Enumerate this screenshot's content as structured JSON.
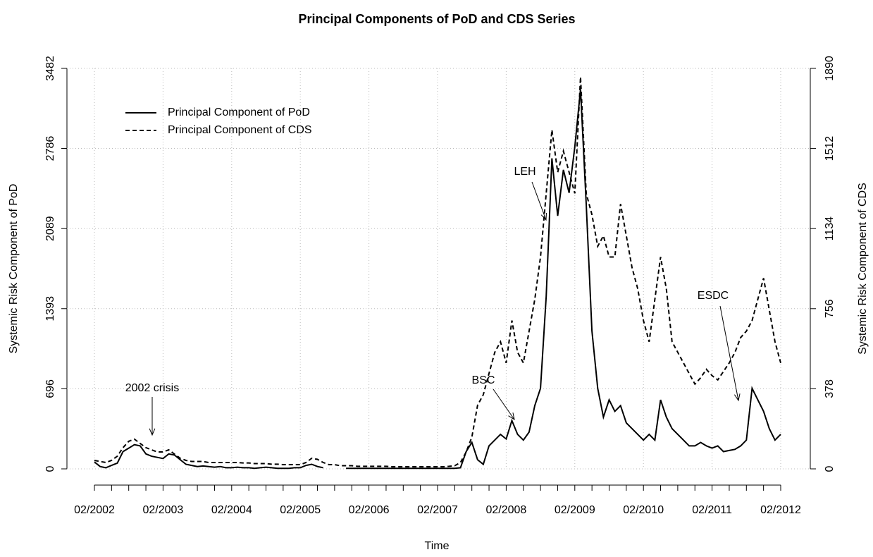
{
  "chart_data": {
    "type": "line",
    "title": "Principal Components of PoD and CDS Series",
    "x_label": "Time",
    "y_label": "Systemic Risk Component of PoD",
    "y2_label": "Systemic Risk Component of CDS",
    "x": [
      "02/2002",
      "03/2002",
      "04/2002",
      "05/2002",
      "06/2002",
      "07/2002",
      "08/2002",
      "09/2002",
      "10/2002",
      "11/2002",
      "12/2002",
      "01/2003",
      "02/2003",
      "03/2003",
      "04/2003",
      "05/2003",
      "06/2003",
      "07/2003",
      "08/2003",
      "09/2003",
      "10/2003",
      "11/2003",
      "12/2003",
      "01/2004",
      "02/2004",
      "03/2004",
      "04/2004",
      "05/2004",
      "06/2004",
      "07/2004",
      "08/2004",
      "09/2004",
      "10/2004",
      "11/2004",
      "12/2004",
      "01/2005",
      "02/2005",
      "03/2005",
      "04/2005",
      "05/2005",
      "06/2005",
      "07/2005",
      "08/2005",
      "09/2005",
      "10/2005",
      "11/2005",
      "12/2005",
      "01/2006",
      "02/2006",
      "03/2006",
      "04/2006",
      "05/2006",
      "06/2006",
      "07/2006",
      "08/2006",
      "09/2006",
      "10/2006",
      "11/2006",
      "12/2006",
      "01/2007",
      "02/2007",
      "03/2007",
      "04/2007",
      "05/2007",
      "06/2007",
      "07/2007",
      "08/2007",
      "09/2007",
      "10/2007",
      "11/2007",
      "12/2007",
      "01/2008",
      "02/2008",
      "03/2008",
      "04/2008",
      "05/2008",
      "06/2008",
      "07/2008",
      "08/2008",
      "09/2008",
      "10/2008",
      "11/2008",
      "12/2008",
      "01/2009",
      "02/2009",
      "03/2009",
      "04/2009",
      "05/2009",
      "06/2009",
      "07/2009",
      "08/2009",
      "09/2009",
      "10/2009",
      "11/2009",
      "12/2009",
      "01/2010",
      "02/2010",
      "03/2010",
      "04/2010",
      "05/2010",
      "06/2010",
      "07/2010",
      "08/2010",
      "09/2010",
      "10/2010",
      "11/2010",
      "12/2010",
      "01/2011",
      "02/2011",
      "03/2011",
      "04/2011",
      "05/2011",
      "06/2011",
      "07/2011",
      "08/2011",
      "09/2011",
      "10/2011",
      "11/2011",
      "12/2011",
      "01/2012",
      "02/2012"
    ],
    "series": [
      {
        "name": "Principal Component of PoD",
        "color": "#000000",
        "line_style": "solid",
        "values": [
          60,
          20,
          10,
          30,
          50,
          150,
          180,
          210,
          200,
          130,
          110,
          100,
          90,
          130,
          120,
          80,
          40,
          30,
          20,
          25,
          20,
          15,
          20,
          10,
          10,
          15,
          10,
          10,
          5,
          10,
          15,
          10,
          5,
          5,
          5,
          10,
          10,
          30,
          40,
          20,
          10,
          null,
          null,
          null,
          5,
          5,
          5,
          5,
          5,
          5,
          5,
          5,
          5,
          5,
          5,
          5,
          5,
          5,
          5,
          5,
          5,
          5,
          5,
          5,
          10,
          150,
          230,
          80,
          40,
          200,
          250,
          300,
          260,
          420,
          300,
          250,
          320,
          550,
          700,
          1500,
          2700,
          2200,
          2600,
          2400,
          2800,
          3300,
          2300,
          1200,
          700,
          450,
          600,
          500,
          550,
          400,
          350,
          300,
          250,
          300,
          250,
          600,
          450,
          350,
          300,
          250,
          200,
          200,
          230,
          200,
          180,
          200,
          150,
          160,
          170,
          200,
          250,
          700,
          600,
          500,
          350,
          250,
          300
        ]
      },
      {
        "name": "Principal Component of CDS",
        "color": "#000000",
        "line_style": "dashed",
        "axis": "y2",
        "values": [
          40,
          35,
          30,
          40,
          60,
          100,
          130,
          140,
          120,
          100,
          90,
          80,
          80,
          90,
          70,
          50,
          40,
          35,
          35,
          35,
          30,
          30,
          30,
          30,
          30,
          30,
          28,
          28,
          25,
          25,
          25,
          22,
          22,
          20,
          20,
          20,
          20,
          30,
          50,
          45,
          30,
          20,
          20,
          15,
          15,
          15,
          12,
          12,
          12,
          12,
          12,
          12,
          10,
          10,
          10,
          10,
          10,
          10,
          10,
          10,
          10,
          10,
          12,
          15,
          30,
          80,
          150,
          300,
          350,
          450,
          550,
          600,
          500,
          700,
          550,
          500,
          650,
          800,
          1000,
          1300,
          1600,
          1400,
          1500,
          1400,
          1300,
          1850,
          1300,
          1200,
          1050,
          1100,
          1000,
          1000,
          1250,
          1100,
          950,
          850,
          700,
          600,
          800,
          1000,
          850,
          600,
          550,
          500,
          450,
          400,
          430,
          470,
          440,
          420,
          460,
          500,
          550,
          620,
          650,
          700,
          800,
          900,
          750,
          600,
          500
        ]
      }
    ],
    "ylim": [
      0,
      3482
    ],
    "yticks": [
      0,
      696,
      1393,
      2089,
      2786,
      3482
    ],
    "y2lim": [
      0,
      1890
    ],
    "y2ticks": [
      0,
      378,
      756,
      1134,
      1512,
      1890
    ],
    "grid": true,
    "legend": "top-left",
    "annotations": [
      "2002 crisis",
      "BSC",
      "LEH",
      "ESDC"
    ]
  }
}
